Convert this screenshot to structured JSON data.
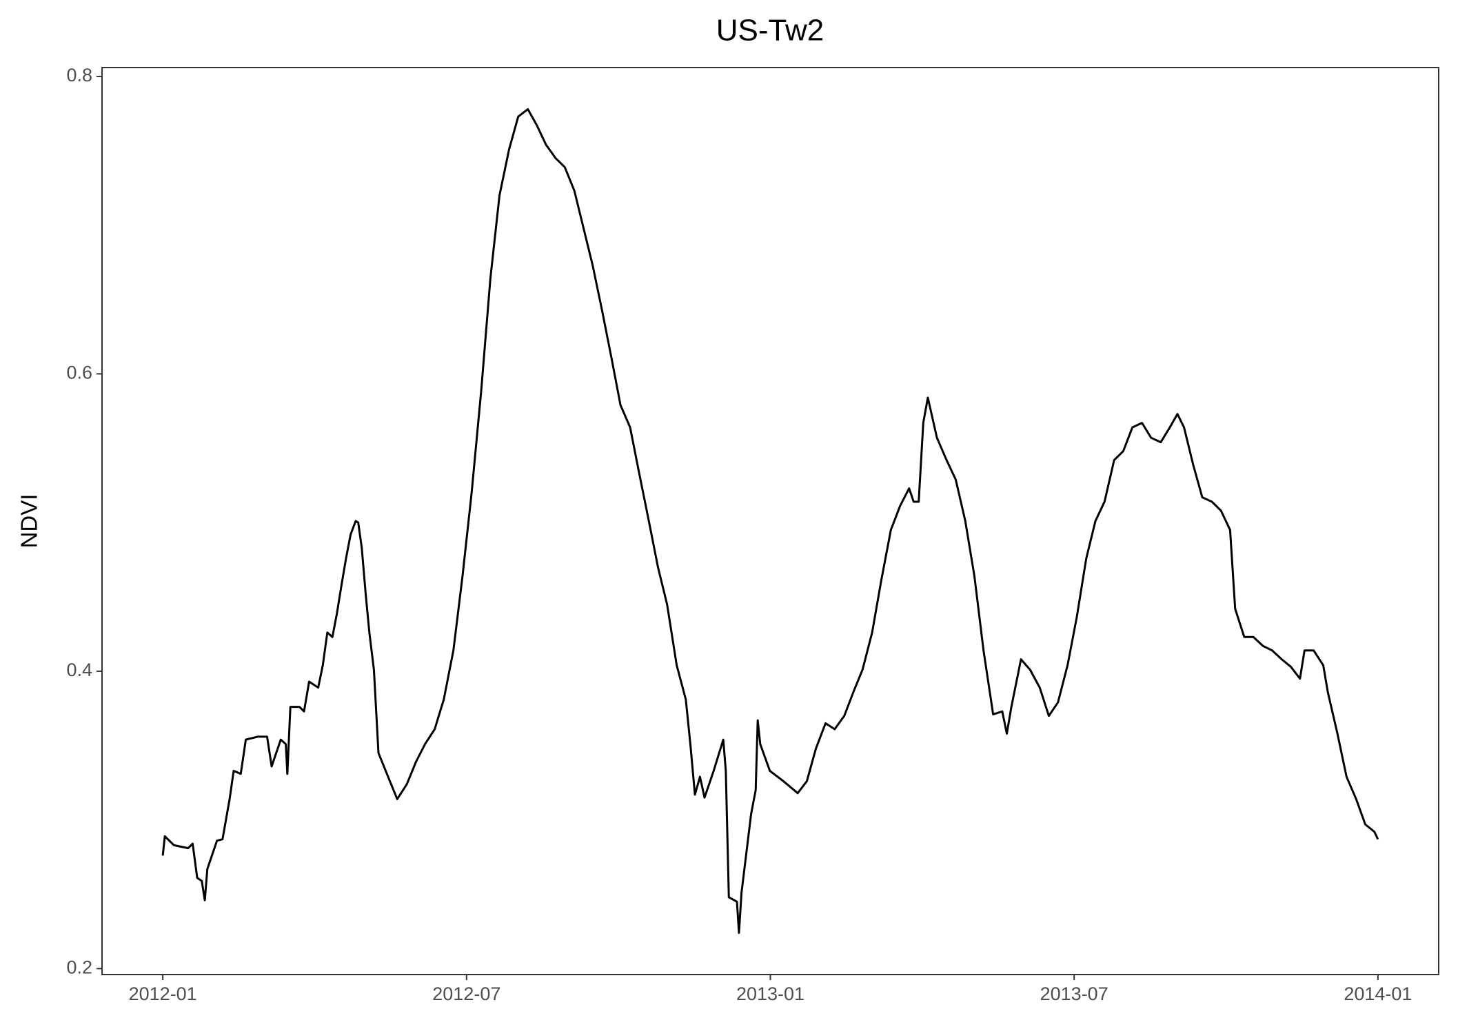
{
  "chart_data": {
    "type": "line",
    "title": "US-Tw2",
    "y_label": "NDVI",
    "x": [
      0.0,
      0.04,
      0.22,
      0.5,
      0.59,
      0.68,
      0.77,
      0.83,
      0.88,
      1.07,
      1.18,
      1.32,
      1.4,
      1.54,
      1.64,
      1.88,
      2.06,
      2.15,
      2.33,
      2.43,
      2.46,
      2.52,
      2.7,
      2.79,
      2.89,
      3.07,
      3.16,
      3.25,
      3.35,
      3.44,
      3.53,
      3.62,
      3.71,
      3.81,
      3.86,
      3.93,
      4.01,
      4.08,
      4.17,
      4.26,
      4.45,
      4.63,
      4.82,
      5.0,
      5.18,
      5.37,
      5.55,
      5.74,
      5.92,
      6.1,
      6.29,
      6.47,
      6.65,
      6.84,
      7.02,
      7.21,
      7.39,
      7.57,
      7.76,
      7.94,
      8.13,
      8.31,
      8.49,
      8.68,
      8.86,
      9.04,
      9.23,
      9.41,
      9.6,
      9.78,
      9.96,
      10.15,
      10.33,
      10.42,
      10.51,
      10.61,
      10.7,
      10.88,
      11.07,
      11.12,
      11.18,
      11.34,
      11.38,
      11.43,
      11.62,
      11.71,
      11.75,
      11.8,
      11.99,
      12.26,
      12.54,
      12.72,
      12.9,
      13.09,
      13.27,
      13.46,
      13.64,
      13.82,
      14.01,
      14.19,
      14.38,
      14.56,
      14.74,
      14.83,
      14.93,
      15.02,
      15.11,
      15.29,
      15.48,
      15.66,
      15.85,
      16.03,
      16.21,
      16.4,
      16.58,
      16.67,
      16.76,
      16.95,
      17.13,
      17.32,
      17.5,
      17.68,
      17.87,
      18.05,
      18.24,
      18.42,
      18.6,
      18.79,
      18.97,
      19.15,
      19.34,
      19.52,
      19.71,
      19.89,
      20.04,
      20.17,
      20.35,
      20.53,
      20.72,
      20.9,
      21.08,
      21.18,
      21.36,
      21.54,
      21.73,
      21.91,
      22.1,
      22.28,
      22.46,
      22.55,
      22.73,
      22.92,
      23.01,
      23.2,
      23.38,
      23.57,
      23.75,
      23.93,
      24.0
    ],
    "values": [
      0.276,
      0.289,
      0.283,
      0.281,
      0.284,
      0.261,
      0.259,
      0.246,
      0.267,
      0.286,
      0.287,
      0.314,
      0.333,
      0.331,
      0.354,
      0.356,
      0.356,
      0.336,
      0.354,
      0.351,
      0.331,
      0.376,
      0.376,
      0.373,
      0.393,
      0.389,
      0.404,
      0.426,
      0.423,
      0.439,
      0.458,
      0.476,
      0.492,
      0.501,
      0.5,
      0.483,
      0.451,
      0.426,
      0.401,
      0.345,
      0.329,
      0.314,
      0.324,
      0.339,
      0.351,
      0.361,
      0.381,
      0.414,
      0.464,
      0.52,
      0.589,
      0.664,
      0.72,
      0.751,
      0.773,
      0.778,
      0.767,
      0.754,
      0.745,
      0.739,
      0.723,
      0.698,
      0.673,
      0.642,
      0.611,
      0.579,
      0.564,
      0.533,
      0.501,
      0.47,
      0.445,
      0.404,
      0.381,
      0.351,
      0.317,
      0.329,
      0.315,
      0.333,
      0.354,
      0.333,
      0.248,
      0.245,
      0.224,
      0.251,
      0.304,
      0.32,
      0.367,
      0.351,
      0.333,
      0.326,
      0.318,
      0.326,
      0.348,
      0.365,
      0.361,
      0.37,
      0.386,
      0.401,
      0.426,
      0.461,
      0.495,
      0.511,
      0.523,
      0.514,
      0.514,
      0.567,
      0.584,
      0.557,
      0.542,
      0.529,
      0.501,
      0.464,
      0.414,
      0.371,
      0.373,
      0.358,
      0.376,
      0.408,
      0.401,
      0.389,
      0.37,
      0.379,
      0.404,
      0.436,
      0.476,
      0.501,
      0.514,
      0.542,
      0.548,
      0.564,
      0.567,
      0.557,
      0.554,
      0.564,
      0.573,
      0.564,
      0.539,
      0.517,
      0.514,
      0.508,
      0.495,
      0.442,
      0.423,
      0.423,
      0.417,
      0.414,
      0.408,
      0.403,
      0.395,
      0.414,
      0.414,
      0.404,
      0.386,
      0.358,
      0.329,
      0.314,
      0.297,
      0.292,
      0.287
    ],
    "color": "#000000",
    "xlim": [
      -1.2,
      25.2
    ],
    "xticks": [
      {
        "value": 0,
        "label": "2012-01"
      },
      {
        "value": 6,
        "label": "2012-07"
      },
      {
        "value": 12,
        "label": "2013-01"
      },
      {
        "value": 18,
        "label": "2013-07"
      },
      {
        "value": 24,
        "label": "2014-01"
      }
    ],
    "ylim": [
      0.196,
      0.806
    ],
    "yticks": [
      0.2,
      0.4,
      0.6,
      0.8
    ],
    "grid": false
  }
}
